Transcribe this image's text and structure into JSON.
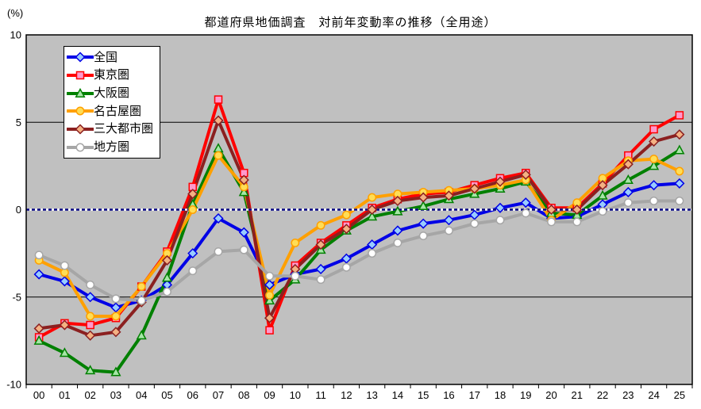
{
  "percent_label": "(%)",
  "chart_data": {
    "type": "line",
    "title": "都道府県地価調査　対前年変動率の推移（全用途）",
    "unit": "(%)",
    "ylim": [
      -10,
      10
    ],
    "y_ticks": [
      10,
      5,
      0,
      -5,
      -10
    ],
    "grid_lines_at": [
      5,
      -5
    ],
    "zero_line": {
      "color": "#000080",
      "style": "dashed",
      "value": 0
    },
    "plot_bg": "#C0C0C0",
    "legend_position": "top-left",
    "categories": [
      "00",
      "01",
      "02",
      "03",
      "04",
      "05",
      "06",
      "07",
      "08",
      "09",
      "10",
      "11",
      "12",
      "13",
      "14",
      "15",
      "16",
      "17",
      "18",
      "19",
      "20",
      "21",
      "22",
      "23",
      "24",
      "25"
    ],
    "series": [
      {
        "name": "全国",
        "color": "#0000E6",
        "marker": "diamond",
        "marker_fill": "#99CCFF",
        "values": [
          -3.7,
          -4.1,
          -5.0,
          -5.6,
          -5.2,
          -4.3,
          -2.5,
          -0.5,
          -1.3,
          -4.3,
          -3.7,
          -3.4,
          -2.8,
          -2.0,
          -1.2,
          -0.8,
          -0.6,
          -0.3,
          0.1,
          0.4,
          -0.5,
          -0.4,
          0.3,
          1.0,
          1.4,
          1.5
        ]
      },
      {
        "name": "東京圏",
        "color": "#FF0000",
        "marker": "square",
        "marker_fill": "#FF99CC",
        "values": [
          -7.3,
          -6.5,
          -6.6,
          -6.2,
          -4.4,
          -2.4,
          1.3,
          6.3,
          2.1,
          -6.9,
          -3.2,
          -1.9,
          -0.9,
          0.1,
          0.6,
          0.9,
          1.0,
          1.4,
          1.8,
          2.1,
          0.1,
          0.1,
          1.5,
          3.1,
          4.6,
          5.4
        ]
      },
      {
        "name": "大阪圏",
        "color": "#008000",
        "marker": "triangle",
        "marker_fill": "#A6E6A6",
        "values": [
          -7.5,
          -8.2,
          -9.2,
          -9.3,
          -7.2,
          -3.9,
          0.3,
          3.5,
          1.0,
          -5.2,
          -4.0,
          -2.3,
          -1.2,
          -0.4,
          -0.1,
          0.2,
          0.6,
          0.9,
          1.2,
          1.6,
          -0.2,
          -0.3,
          0.8,
          1.7,
          2.5,
          3.4
        ]
      },
      {
        "name": "名古屋圏",
        "color": "#FFA000",
        "marker": "circle",
        "marker_fill": "#FFDD55",
        "values": [
          -2.9,
          -3.6,
          -6.1,
          -6.1,
          -4.4,
          -2.5,
          0.0,
          3.1,
          1.3,
          -4.9,
          -1.9,
          -0.9,
          -0.3,
          0.7,
          0.9,
          1.0,
          1.1,
          1.2,
          1.4,
          1.7,
          -0.6,
          0.4,
          1.8,
          2.8,
          2.9,
          2.2
        ]
      },
      {
        "name": "三大都市圏",
        "color": "#8B2020",
        "marker": "diamond",
        "marker_fill": "#F4B183",
        "values": [
          -6.8,
          -6.6,
          -7.2,
          -7.0,
          -5.3,
          -2.9,
          0.9,
          5.1,
          1.7,
          -6.2,
          -3.4,
          -2.0,
          -1.1,
          0.0,
          0.5,
          0.7,
          0.8,
          1.2,
          1.6,
          2.0,
          0.0,
          0.0,
          1.4,
          2.6,
          3.9,
          4.3
        ]
      },
      {
        "name": "地方圏",
        "color": "#A6A6A6",
        "marker": "circle",
        "marker_fill": "#FFFFFF",
        "values": [
          -2.6,
          -3.2,
          -4.3,
          -5.1,
          -5.2,
          -4.7,
          -3.5,
          -2.4,
          -2.3,
          -3.8,
          -3.8,
          -4.0,
          -3.3,
          -2.5,
          -1.9,
          -1.5,
          -1.2,
          -0.8,
          -0.6,
          -0.2,
          -0.7,
          -0.7,
          -0.1,
          0.4,
          0.5,
          0.5
        ]
      }
    ]
  }
}
